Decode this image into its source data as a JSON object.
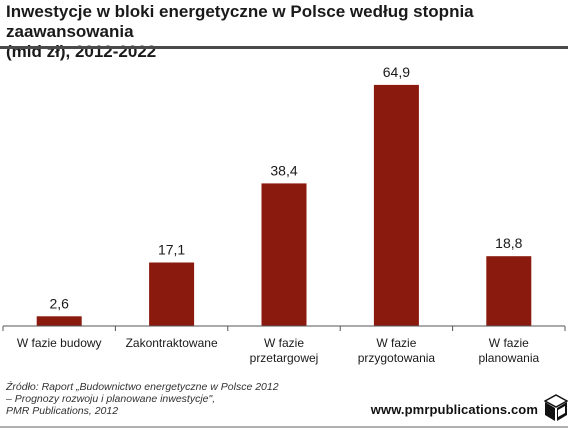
{
  "header": {
    "title_line1": "Inwestycje w bloki energetyczne w Polsce według stopnia zaawansowania",
    "title_line2": "(mld zł), 2012-2022"
  },
  "chart_data": {
    "type": "bar",
    "title": "Inwestycje w bloki energetyczne w Polsce według stopnia zaawansowania (mld zł), 2012-2022",
    "categories": [
      [
        "W fazie budowy"
      ],
      [
        "Zakontraktowane"
      ],
      [
        "W fazie",
        "przetargowej"
      ],
      [
        "W fazie",
        "przygotowania"
      ],
      [
        "W fazie",
        "planowania"
      ]
    ],
    "values": [
      2.6,
      17.1,
      38.4,
      64.9,
      18.8
    ],
    "value_labels": [
      "2,6",
      "17,1",
      "38,4",
      "64,9",
      "18,8"
    ],
    "ylim": [
      0,
      70
    ],
    "grid": false,
    "bar_color": "#8b1a0e"
  },
  "source": {
    "line1": "Źródło: Raport „Budownictwo energetyczne w Polsce 2012",
    "line2": "– Prognozy rozwoju i planowane inwestycje\",",
    "line3": "PMR Publications, 2012"
  },
  "footer": {
    "website": "www.pmrpublications.com"
  },
  "colors": {
    "bar": "#8b1a0e",
    "axis": "#555555",
    "divider": "#4a4a4a"
  },
  "icons": {
    "logo": "pmr-cube-icon"
  }
}
